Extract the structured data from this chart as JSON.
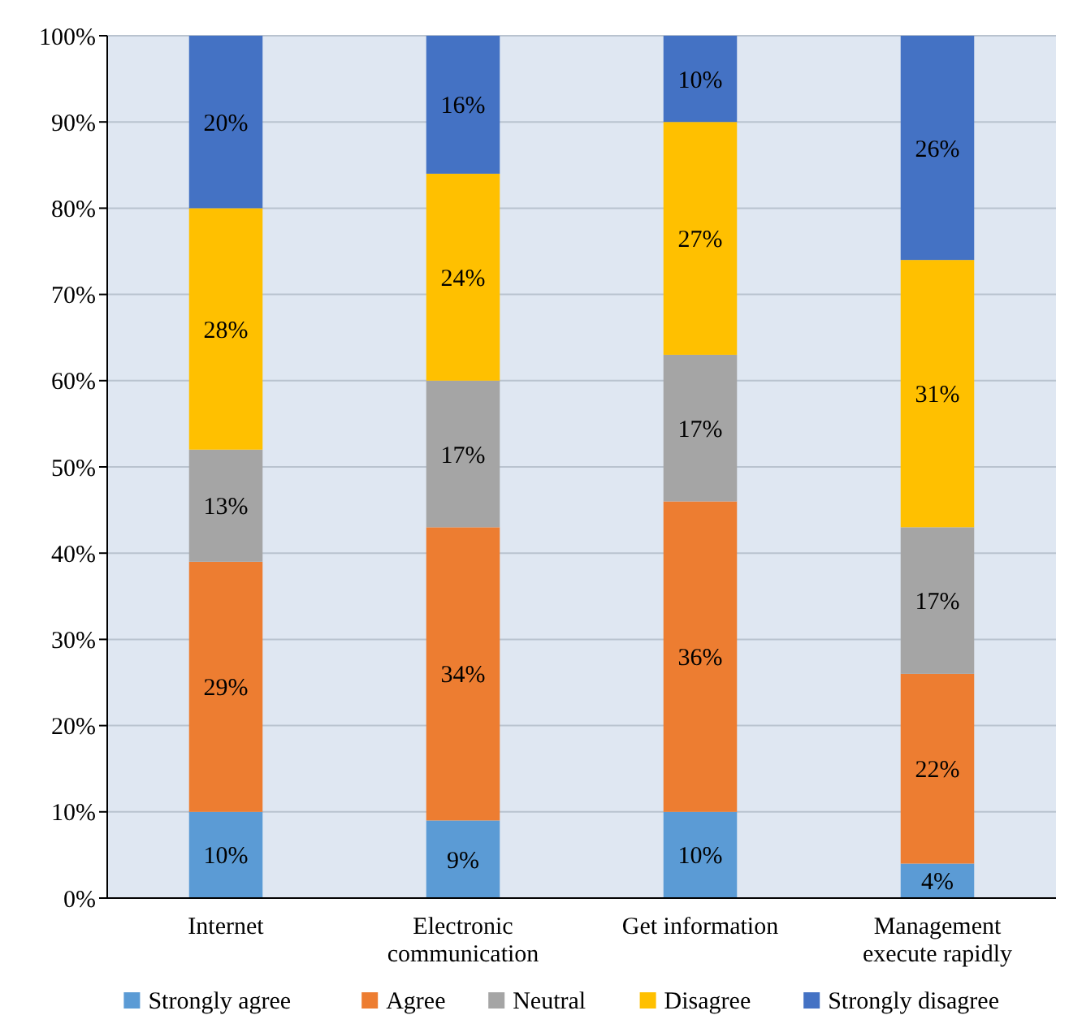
{
  "chart_data": {
    "type": "bar",
    "stacked": true,
    "categories": [
      "Internet",
      "Electronic communication",
      "Get information",
      "Management execute rapidly"
    ],
    "series": [
      {
        "name": "Strongly agree",
        "color": "#5b9bd5",
        "values": [
          10,
          9,
          10,
          4
        ],
        "value_labels": [
          "10%",
          "9%",
          "10%",
          "4%"
        ]
      },
      {
        "name": "Agree",
        "color": "#ed7d31",
        "values": [
          29,
          34,
          36,
          22
        ],
        "value_labels": [
          "29%",
          "34%",
          "36%",
          "22%"
        ]
      },
      {
        "name": "Neutral",
        "color": "#a5a5a5",
        "values": [
          13,
          17,
          17,
          17
        ],
        "value_labels": [
          "13%",
          "17%",
          "17%",
          "17%"
        ]
      },
      {
        "name": "Disagree",
        "color": "#ffc000",
        "values": [
          28,
          24,
          27,
          31
        ],
        "value_labels": [
          "28%",
          "24%",
          "27%",
          "31%"
        ]
      },
      {
        "name": "Strongly disagree",
        "color": "#4472c4",
        "values": [
          20,
          16,
          10,
          26
        ],
        "value_labels": [
          "20%",
          "16%",
          "10%",
          "26%"
        ]
      }
    ],
    "ylim": [
      0,
      100
    ],
    "yticks": [
      {
        "value": 0,
        "label": "0%"
      },
      {
        "value": 10,
        "label": "10%"
      },
      {
        "value": 20,
        "label": "20%"
      },
      {
        "value": 30,
        "label": "30%"
      },
      {
        "value": 40,
        "label": "40%"
      },
      {
        "value": 50,
        "label": "50%"
      },
      {
        "value": 60,
        "label": "60%"
      },
      {
        "value": 70,
        "label": "70%"
      },
      {
        "value": 80,
        "label": "80%"
      },
      {
        "value": 90,
        "label": "90%"
      },
      {
        "value": 100,
        "label": "100%"
      }
    ],
    "grid": "y",
    "legend": "bottom"
  }
}
